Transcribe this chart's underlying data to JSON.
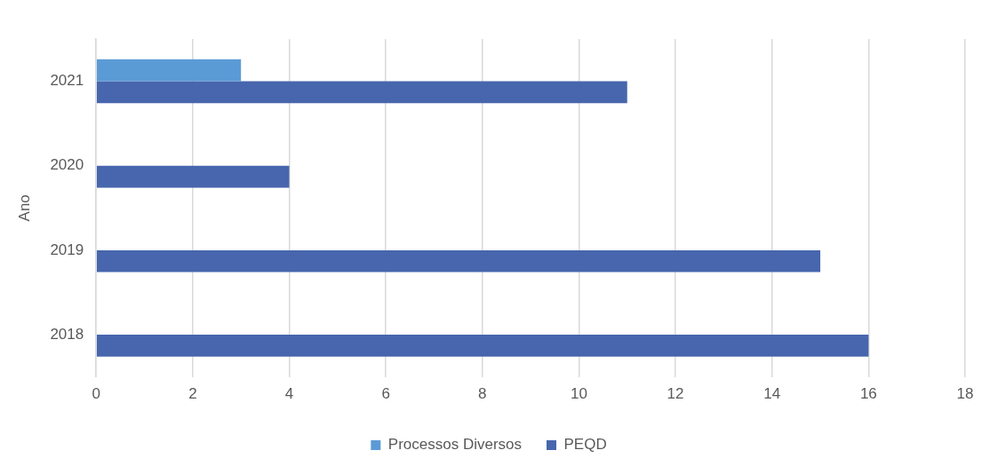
{
  "chart_data": {
    "type": "bar",
    "orientation": "horizontal",
    "ylabel": "Ano",
    "categories": [
      "2021",
      "2020",
      "2019",
      "2018"
    ],
    "series": [
      {
        "name": "Processos Diversos",
        "color": "#5b9bd5",
        "values": [
          3,
          null,
          null,
          null
        ]
      },
      {
        "name": "PEQD",
        "color": "#4766ad",
        "values": [
          11,
          4,
          15,
          16
        ]
      }
    ],
    "xlim": [
      0,
      18
    ],
    "xticks": [
      0,
      2,
      4,
      6,
      8,
      10,
      12,
      14,
      16,
      18
    ],
    "grid": "x",
    "legend": "bottom"
  }
}
